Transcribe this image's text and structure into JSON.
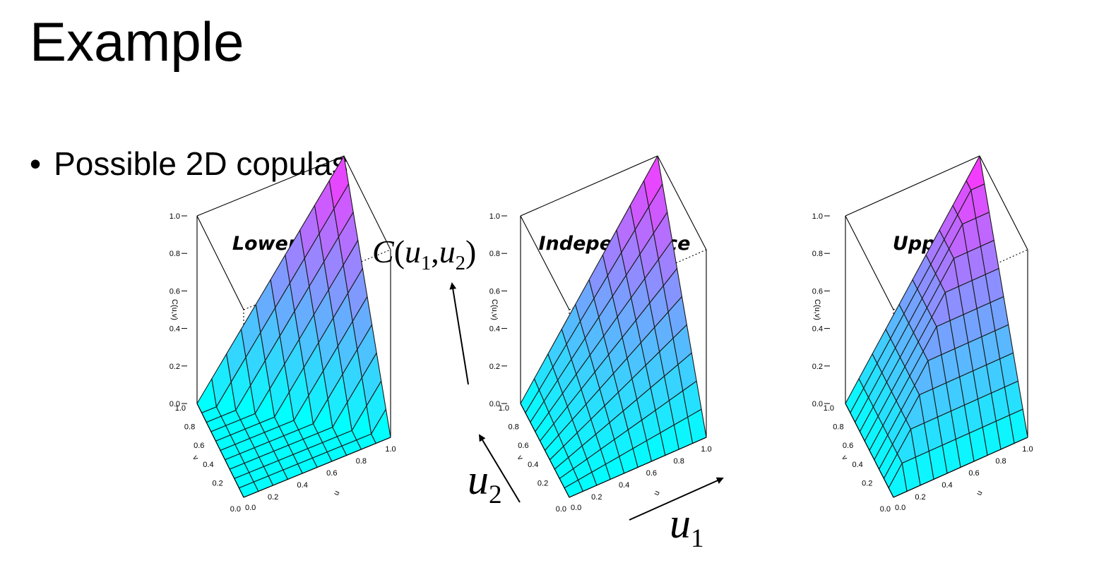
{
  "slide": {
    "title": "Example",
    "bullet_symbol": "•",
    "bullet_text": "Possible 2D copulas"
  },
  "annotations": {
    "function_label": {
      "name": "C",
      "open": "(",
      "var1": "u",
      "sub1": "1",
      "sep": ",",
      "var2": "u",
      "sub2": "2",
      "close": ")"
    },
    "axis_label_u1": {
      "var": "u",
      "sub": "1"
    },
    "axis_label_u2": {
      "var": "u",
      "sub": "2"
    }
  },
  "chart_data": [
    {
      "type": "surface",
      "title": "Lower",
      "function": "max(u + v - 1, 0)",
      "xlabel": "u",
      "ylabel": "v",
      "zlabel": "C(u,v)",
      "xlim": [
        0,
        1
      ],
      "ylim": [
        0,
        1
      ],
      "zlim": [
        0,
        1
      ],
      "x_ticks": [
        "0.0",
        "0.2",
        "0.4",
        "0.6",
        "0.8",
        "1.0"
      ],
      "y_ticks": [
        "0.0",
        "0.2",
        "0.4",
        "0.6",
        "0.8",
        "1.0"
      ],
      "z_ticks": [
        "0.0",
        "0.2",
        "0.4",
        "0.6",
        "0.8",
        "1.0"
      ],
      "grid_size": 10,
      "colors": {
        "low": "#00ffff",
        "high": "#ff33ff"
      }
    },
    {
      "type": "surface",
      "title": "Independence",
      "function": "u * v",
      "xlabel": "u",
      "ylabel": "v",
      "zlabel": "C(u,v)",
      "xlim": [
        0,
        1
      ],
      "ylim": [
        0,
        1
      ],
      "zlim": [
        0,
        1
      ],
      "x_ticks": [
        "0.0",
        "0.2",
        "0.4",
        "0.6",
        "0.8",
        "1.0"
      ],
      "y_ticks": [
        "0.0",
        "0.2",
        "0.4",
        "0.6",
        "0.8",
        "1.0"
      ],
      "z_ticks": [
        "0.0",
        "0.2",
        "0.4",
        "0.6",
        "0.8",
        "1.0"
      ],
      "grid_size": 10,
      "colors": {
        "low": "#00ffff",
        "high": "#ff33ff"
      }
    },
    {
      "type": "surface",
      "title": "Upper",
      "function": "min(u, v)",
      "xlabel": "u",
      "ylabel": "v",
      "zlabel": "C(u,v)",
      "xlim": [
        0,
        1
      ],
      "ylim": [
        0,
        1
      ],
      "zlim": [
        0,
        1
      ],
      "x_ticks": [
        "0.0",
        "0.2",
        "0.4",
        "0.6",
        "0.8",
        "1.0"
      ],
      "y_ticks": [
        "0.0",
        "0.2",
        "0.4",
        "0.6",
        "0.8",
        "1.0"
      ],
      "z_ticks": [
        "0.0",
        "0.2",
        "0.4",
        "0.6",
        "0.8",
        "1.0"
      ],
      "grid_size": 10,
      "colors": {
        "low": "#00ffff",
        "high": "#ff33ff"
      }
    }
  ]
}
